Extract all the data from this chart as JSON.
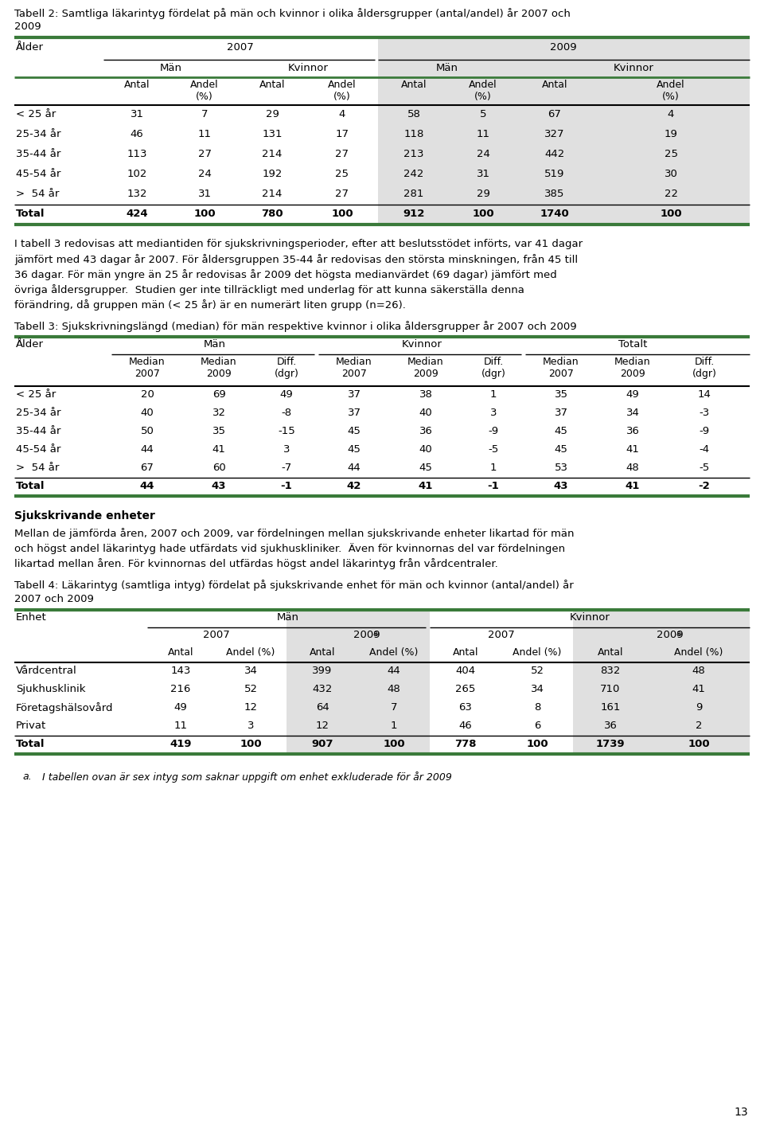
{
  "page_number": "13",
  "table2": {
    "title_line1": "Tabell 2: Samtliga läkarintyg fördelat på män och kvinnor i olika åldersgrupper (antal/andel) år 2007 och",
    "title_line2": "2009",
    "rows": [
      [
        "< 25 år",
        "31",
        "7",
        "29",
        "4",
        "58",
        "5",
        "67",
        "4"
      ],
      [
        "25-34 år",
        "46",
        "11",
        "131",
        "17",
        "118",
        "11",
        "327",
        "19"
      ],
      [
        "35-44 år",
        "113",
        "27",
        "214",
        "27",
        "213",
        "24",
        "442",
        "25"
      ],
      [
        "45-54 år",
        "102",
        "24",
        "192",
        "25",
        "242",
        "31",
        "519",
        "30"
      ],
      [
        ">  54 år",
        "132",
        "31",
        "214",
        "27",
        "281",
        "29",
        "385",
        "22"
      ]
    ],
    "total_row": [
      "Total",
      "424",
      "100",
      "780",
      "100",
      "912",
      "100",
      "1740",
      "100"
    ]
  },
  "paragraph1_lines": [
    "I tabell 3 redovisas att mediantiden för sjukskrivningsperioder, efter att beslutsstödet införts, var 41 dagar",
    "jämfört med 43 dagar år 2007. För åldersgruppen 35-44 år redovisas den största minskningen, från 45 till",
    "36 dagar. För män yngre än 25 år redovisas år 2009 det högsta medianvärdet (69 dagar) jämfört med",
    "övriga åldersgrupper.  Studien ger inte tillräckligt med underlag för att kunna säkerställa denna",
    "förändring, då gruppen män (< 25 år) är en numerärt liten grupp (n=26)."
  ],
  "table3": {
    "title": "Tabell 3: Sjukskrivningslängd (median) för män respektive kvinnor i olika åldersgrupper år 2007 och 2009",
    "rows": [
      [
        "< 25 år",
        "20",
        "69",
        "49",
        "37",
        "38",
        "1",
        "35",
        "49",
        "14"
      ],
      [
        "25-34 år",
        "40",
        "32",
        "-8",
        "37",
        "40",
        "3",
        "37",
        "34",
        "-3"
      ],
      [
        "35-44 år",
        "50",
        "35",
        "-15",
        "45",
        "36",
        "-9",
        "45",
        "36",
        "-9"
      ],
      [
        "45-54 år",
        "44",
        "41",
        "3",
        "45",
        "40",
        "-5",
        "45",
        "41",
        "-4"
      ],
      [
        ">  54 år",
        "67",
        "60",
        "-7",
        "44",
        "45",
        "1",
        "53",
        "48",
        "-5"
      ]
    ],
    "total_row": [
      "Total",
      "44",
      "43",
      "-1",
      "42",
      "41",
      "-1",
      "43",
      "41",
      "-2"
    ]
  },
  "section_header": "Sjukskrivande enheter",
  "paragraph2_lines": [
    "Mellan de jämförda åren, 2007 och 2009, var fördelningen mellan sjukskrivande enheter likartad för män",
    "och högst andel läkarintyg hade utfärdats vid sjukhuskliniker.  Även för kvinnornas del var fördelningen",
    "likartad mellan åren. För kvinnornas del utfärdas högst andel läkarintyg från vårdcentraler."
  ],
  "table4": {
    "title_line1": "Tabell 4: Läkarintyg (samtliga intyg) fördelat på sjukskrivande enhet för män och kvinnor (antal/andel) år",
    "title_line2": "2007 och 2009",
    "rows": [
      [
        "Vårdcentral",
        "143",
        "34",
        "399",
        "44",
        "404",
        "52",
        "832",
        "48"
      ],
      [
        "Sjukhusklinik",
        "216",
        "52",
        "432",
        "48",
        "265",
        "34",
        "710",
        "41"
      ],
      [
        "Företagshälsovård",
        "49",
        "12",
        "64",
        "7",
        "63",
        "8",
        "161",
        "9"
      ],
      [
        "Privat",
        "11",
        "3",
        "12",
        "1",
        "46",
        "6",
        "36",
        "2"
      ]
    ],
    "total_row": [
      "Total",
      "419",
      "100",
      "907",
      "100",
      "778",
      "100",
      "1739",
      "100"
    ]
  },
  "footnote_label": "a.",
  "footnote_text": "I tabellen ovan är sex intyg som saknar uppgift om enhet exkluderade för år 2009",
  "colors": {
    "green_line": "#3a7a3a",
    "light_gray_bg": "#e0e0e0",
    "white": "#ffffff",
    "black": "#000000"
  }
}
